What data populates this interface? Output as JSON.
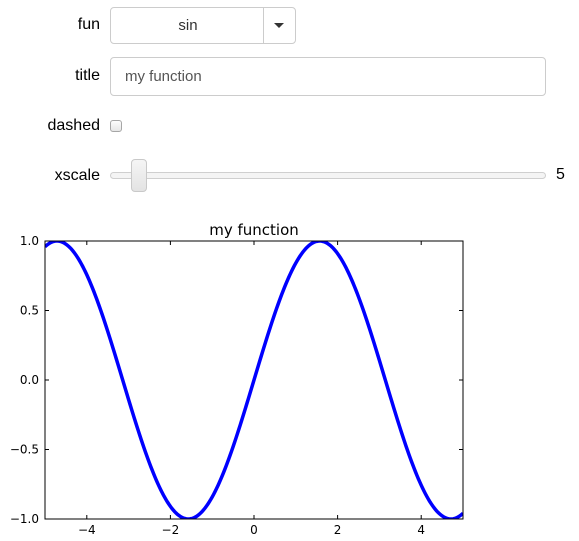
{
  "widgets": {
    "fun": {
      "label": "fun",
      "selected": "sin"
    },
    "title": {
      "label": "title",
      "value": "my function"
    },
    "dashed": {
      "label": "dashed",
      "checked": false
    },
    "xscale": {
      "label": "xscale",
      "value": "5"
    }
  },
  "chart_data": {
    "type": "line",
    "title": "my function",
    "xlabel": "",
    "ylabel": "",
    "xlim": [
      -5,
      5
    ],
    "ylim": [
      -1.0,
      1.0
    ],
    "xticks": [
      "−4",
      "−2",
      "0",
      "2",
      "4"
    ],
    "yticks": [
      "1.0",
      "0.5",
      "0.0",
      "−0.5",
      "−1.0"
    ],
    "function": "sin",
    "line_color": "#0000ff",
    "series": [
      {
        "x": [
          -5,
          -4.5,
          -4,
          -3.5,
          -3,
          -2.5,
          -2,
          -1.5,
          -1,
          -0.5,
          0,
          0.5,
          1,
          1.5,
          2,
          2.5,
          3,
          3.5,
          4,
          4.5,
          5
        ],
        "y": [
          0.959,
          0.978,
          0.757,
          0.351,
          -0.141,
          -0.598,
          -0.909,
          -0.997,
          -0.841,
          -0.479,
          0,
          0.479,
          0.841,
          0.997,
          0.909,
          0.598,
          0.141,
          -0.351,
          -0.757,
          -0.978,
          -0.959
        ]
      }
    ],
    "grid": false,
    "legend": "none"
  }
}
